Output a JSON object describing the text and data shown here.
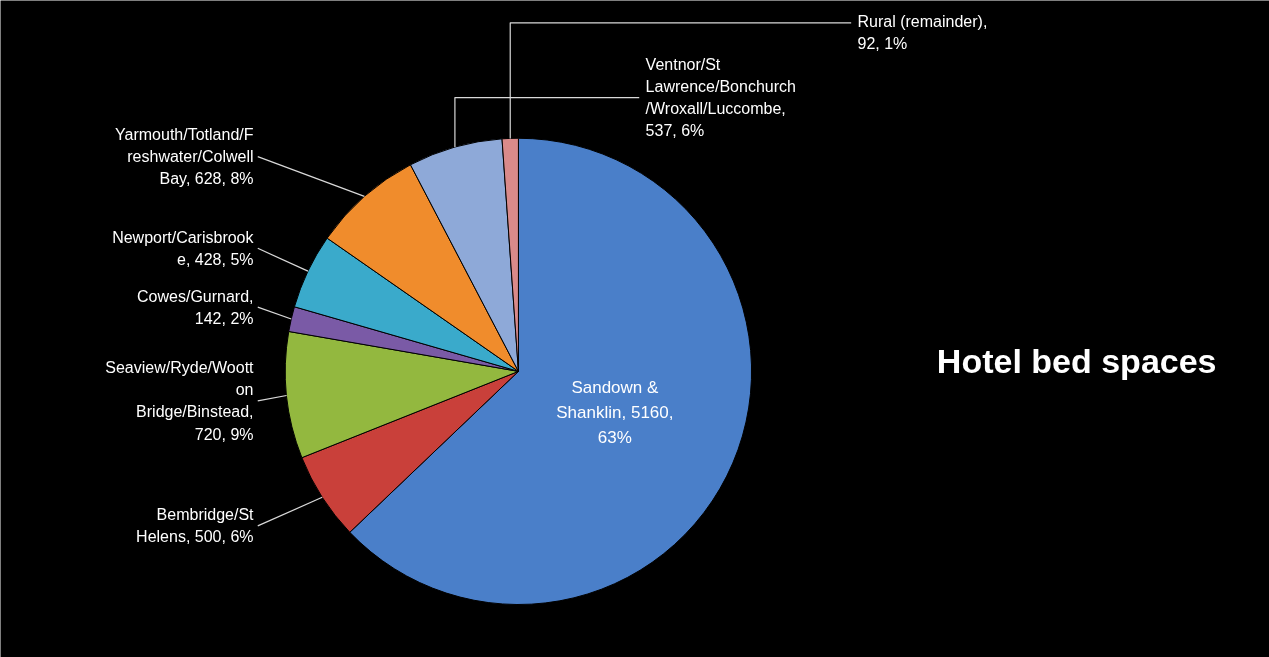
{
  "chart_data": {
    "type": "pie",
    "title": "Hotel bed spaces",
    "categories": [
      "Sandown & Shanklin",
      "Bembridge/St Helens",
      "Seaview/Ryde/Wootton Bridge/Binstead",
      "Cowes/Gurnard",
      "Newport/Carisbrooke",
      "Yarmouth/Totland/Freshwater/Colwell Bay",
      "Ventnor/St Lawrence/Bonchurch/Wroxall/Luccombe",
      "Rural (remainder)"
    ],
    "values": [
      5160,
      500,
      720,
      142,
      428,
      628,
      537,
      92
    ],
    "value_labels": [
      ", 5160, 63%",
      ", 500, 6%",
      ", 720, 9%",
      ", 142, 2%",
      ", 428, 5%",
      ", 628, 8%",
      ", 537, 6%",
      ", 92, 1%"
    ],
    "colors": [
      "#4a7fc9",
      "#c9403a",
      "#93b83f",
      "#7a5aa6",
      "#3aaacb",
      "#f08c2c",
      "#8ea9d8",
      "#d98a8a"
    ]
  }
}
